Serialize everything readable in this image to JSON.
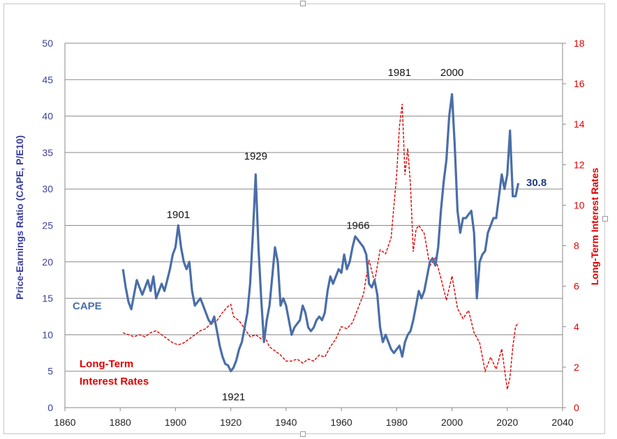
{
  "chart_data": {
    "type": "line",
    "title": "",
    "xlabel": "",
    "ylabel_left": "Price-Earnings Ratio (CAPE, P/E10)",
    "ylabel_right": "Long-Term Interest Rates",
    "xlim": [
      1860,
      2040
    ],
    "ylim_left": [
      0,
      50
    ],
    "ylim_right": [
      0,
      18
    ],
    "x_ticks": [
      1860,
      1880,
      1900,
      1920,
      1940,
      1960,
      1980,
      2000,
      2020,
      2040
    ],
    "y_ticks_left": [
      0,
      5,
      10,
      15,
      20,
      25,
      30,
      35,
      40,
      45,
      50
    ],
    "y_ticks_right": [
      0,
      2,
      4,
      6,
      8,
      10,
      12,
      14,
      16,
      18
    ],
    "grid": true,
    "colors": {
      "cape": "#4a6ea8",
      "rates": "#e00000",
      "left_axis": "#3a3fa0",
      "grid": "#8a8a8a"
    },
    "series": [
      {
        "name": "CAPE",
        "axis": "left",
        "style": "solid",
        "x": [
          1881,
          1882,
          1883,
          1884,
          1885,
          1886,
          1887,
          1888,
          1889,
          1890,
          1891,
          1892,
          1893,
          1894,
          1895,
          1896,
          1897,
          1898,
          1899,
          1900,
          1901,
          1902,
          1903,
          1904,
          1905,
          1906,
          1907,
          1908,
          1909,
          1910,
          1911,
          1912,
          1913,
          1914,
          1915,
          1916,
          1917,
          1918,
          1919,
          1920,
          1921,
          1922,
          1923,
          1924,
          1925,
          1926,
          1927,
          1928,
          1929,
          1930,
          1931,
          1932,
          1933,
          1934,
          1935,
          1936,
          1937,
          1938,
          1939,
          1940,
          1941,
          1942,
          1943,
          1944,
          1945,
          1946,
          1947,
          1948,
          1949,
          1950,
          1951,
          1952,
          1953,
          1954,
          1955,
          1956,
          1957,
          1958,
          1959,
          1960,
          1961,
          1962,
          1963,
          1964,
          1965,
          1966,
          1967,
          1968,
          1969,
          1970,
          1971,
          1972,
          1973,
          1974,
          1975,
          1976,
          1977,
          1978,
          1979,
          1980,
          1981,
          1982,
          1983,
          1984,
          1985,
          1986,
          1987,
          1988,
          1989,
          1990,
          1991,
          1992,
          1993,
          1994,
          1995,
          1996,
          1997,
          1998,
          1999,
          2000,
          2001,
          2002,
          2003,
          2004,
          2005,
          2006,
          2007,
          2008,
          2009,
          2010,
          2011,
          2012,
          2013,
          2014,
          2015,
          2016,
          2017,
          2018,
          2019,
          2020,
          2021,
          2022,
          2023,
          2024
        ],
        "values": [
          19,
          16.5,
          14.5,
          13.5,
          15.5,
          17.5,
          16.5,
          15.5,
          16.5,
          17.5,
          16,
          18,
          15,
          16,
          17,
          16,
          17.5,
          19,
          21,
          22,
          25,
          22,
          20,
          19,
          20,
          16,
          14,
          14.5,
          15,
          14,
          13,
          12,
          11.5,
          12.5,
          10.5,
          8.5,
          7,
          6,
          5.8,
          5,
          5.5,
          6.5,
          8,
          9,
          11,
          13,
          17,
          24,
          32,
          22,
          15,
          9,
          12,
          14,
          18,
          22,
          20,
          14,
          15,
          14,
          12,
          10,
          11,
          11.5,
          12,
          14,
          13,
          11,
          10.5,
          11,
          12,
          12.5,
          12,
          13,
          16,
          18,
          17,
          18,
          19,
          18.5,
          21,
          19,
          20,
          22,
          23.5,
          23,
          22.5,
          22,
          21,
          17,
          16.5,
          17.5,
          15.5,
          11,
          9,
          10,
          9,
          8,
          7.5,
          8,
          8.5,
          7,
          9,
          10,
          10.5,
          12,
          14,
          16,
          15,
          16,
          18,
          20,
          20.5,
          19.5,
          22,
          27,
          31,
          34,
          40,
          43,
          36,
          27,
          24,
          26,
          26,
          26.5,
          27,
          24,
          15,
          20,
          21,
          21.5,
          24,
          25,
          26,
          26,
          29,
          32,
          30,
          32,
          38,
          29,
          29,
          30.8
        ]
      },
      {
        "name": "Long-Term Interest Rates",
        "axis": "right",
        "style": "dashed",
        "x": [
          1881,
          1883,
          1885,
          1887,
          1889,
          1891,
          1893,
          1895,
          1897,
          1899,
          1901,
          1903,
          1905,
          1907,
          1909,
          1911,
          1913,
          1915,
          1917,
          1919,
          1920,
          1921,
          1923,
          1925,
          1927,
          1929,
          1931,
          1932,
          1934,
          1936,
          1938,
          1940,
          1942,
          1944,
          1946,
          1948,
          1950,
          1952,
          1954,
          1956,
          1958,
          1960,
          1962,
          1964,
          1966,
          1968,
          1970,
          1972,
          1974,
          1976,
          1978,
          1980,
          1981,
          1982,
          1983,
          1984,
          1985,
          1986,
          1987,
          1988,
          1990,
          1992,
          1994,
          1996,
          1998,
          2000,
          2002,
          2004,
          2006,
          2008,
          2010,
          2012,
          2014,
          2016,
          2018,
          2020,
          2021,
          2022,
          2023,
          2024
        ],
        "values": [
          3.7,
          3.6,
          3.5,
          3.6,
          3.5,
          3.7,
          3.8,
          3.6,
          3.4,
          3.2,
          3.1,
          3.2,
          3.4,
          3.6,
          3.8,
          3.9,
          4.2,
          4.3,
          4.7,
          5,
          5.1,
          4.5,
          4.3,
          3.9,
          3.5,
          3.6,
          3.4,
          3.6,
          3,
          2.8,
          2.6,
          2.3,
          2.3,
          2.4,
          2.2,
          2.4,
          2.3,
          2.6,
          2.5,
          3,
          3.4,
          4,
          3.9,
          4.2,
          4.9,
          5.6,
          7.3,
          6.2,
          7.8,
          7.6,
          8.4,
          11.5,
          13.9,
          15,
          11.5,
          12.8,
          11,
          7.7,
          8.8,
          9,
          8.6,
          7,
          7.4,
          6.4,
          5.3,
          6.5,
          4.9,
          4.4,
          4.8,
          3.7,
          3.2,
          1.8,
          2.5,
          1.9,
          2.9,
          0.9,
          1.5,
          3,
          4,
          4.2
        ]
      }
    ],
    "annotations": [
      {
        "text": "1901",
        "x": 1901,
        "y": 26.5,
        "axis": "left"
      },
      {
        "text": "1921",
        "x": 1921,
        "y": 1.5,
        "axis": "left"
      },
      {
        "text": "1929",
        "x": 1929,
        "y": 34.5,
        "axis": "left"
      },
      {
        "text": "1966",
        "x": 1966,
        "y": 25,
        "axis": "left"
      },
      {
        "text": "1981",
        "x": 1981,
        "y": 46,
        "axis": "left"
      },
      {
        "text": "2000",
        "x": 2000,
        "y": 46,
        "axis": "left"
      }
    ],
    "series_labels": {
      "cape": "CAPE",
      "rates_line1": "Long-Term",
      "rates_line2": "Interest Rates",
      "last_value": "30.8"
    }
  }
}
